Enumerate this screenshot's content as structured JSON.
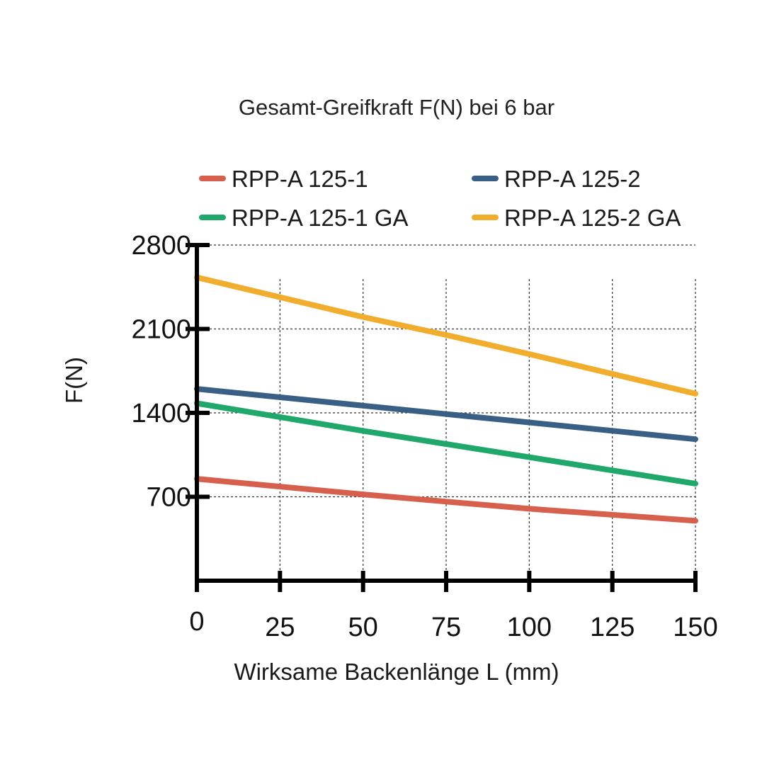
{
  "chart_data": {
    "type": "line",
    "title": "Gesamt-Greifkraft F(N) bei 6 bar",
    "xlabel": "Wirksame Backenlänge L (mm)",
    "ylabel": "F(N)",
    "x": [
      0,
      25,
      50,
      75,
      100,
      125,
      150
    ],
    "xlim": [
      0,
      150
    ],
    "ylim": [
      0,
      2800
    ],
    "yticks": [
      700,
      1400,
      2100,
      2800
    ],
    "grid": true,
    "legend_position": "top",
    "series": [
      {
        "name": "RPP-A 125-1",
        "color": "#d6604d",
        "x": [
          0,
          50,
          75,
          100,
          150
        ],
        "values": [
          850,
          720,
          660,
          600,
          500
        ]
      },
      {
        "name": "RPP-A 125-2",
        "color": "#3a5f85",
        "x": [
          0,
          50,
          75,
          100,
          150
        ],
        "values": [
          1600,
          1460,
          1390,
          1320,
          1180
        ]
      },
      {
        "name": "RPP-A 125-1 GA",
        "color": "#1fa86a",
        "x": [
          0,
          50,
          75,
          100,
          150
        ],
        "values": [
          1480,
          1250,
          1140,
          1030,
          810
        ]
      },
      {
        "name": "RPP-A 125-2 GA",
        "color": "#f1ad2d",
        "x": [
          0,
          50,
          75,
          100,
          150
        ],
        "values": [
          2530,
          2200,
          2050,
          1890,
          1560
        ]
      }
    ]
  }
}
